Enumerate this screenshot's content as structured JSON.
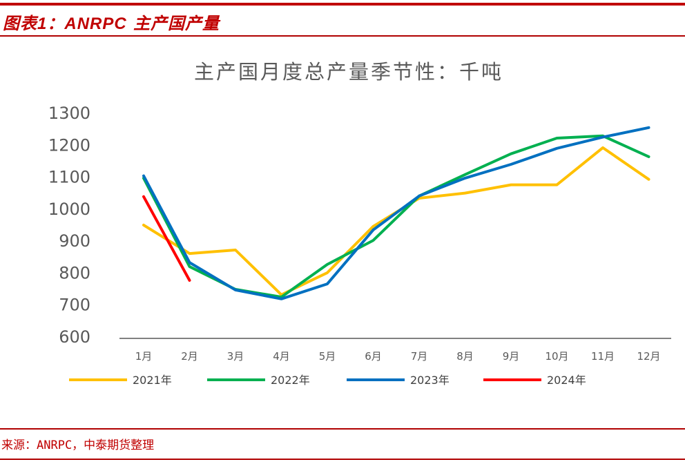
{
  "figure": {
    "title": "图表1：ANRPC 主产国产量",
    "title_prefix": "图表",
    "title_number": "1：",
    "title_en": "ANRPC",
    "title_suffix": "主产国产量"
  },
  "source": "来源：ANRPC，中泰期货整理",
  "colors": {
    "accent_red": "#c00000",
    "series_2021": "#ffc000",
    "series_2022": "#00b050",
    "series_2023": "#0070c0",
    "series_2024": "#ff0000"
  },
  "chart_data": {
    "type": "line",
    "title": "主产国月度总产量季节性：千吨",
    "xlabel": "",
    "ylabel": "",
    "ylim": [
      600,
      1300
    ],
    "yticks": [
      600,
      700,
      800,
      900,
      1000,
      1100,
      1200,
      1300
    ],
    "grid": false,
    "legend_position": "bottom",
    "categories": [
      "1月",
      "2月",
      "3月",
      "4月",
      "5月",
      "6月",
      "7月",
      "8月",
      "9月",
      "10月",
      "11月",
      "12月"
    ],
    "series": [
      {
        "name": "2021年",
        "color": "#ffc000",
        "values": [
          948,
          859,
          870,
          730,
          799,
          944,
          1032,
          1048,
          1074,
          1074,
          1190,
          1091
        ]
      },
      {
        "name": "2022年",
        "color": "#00b050",
        "values": [
          1095,
          818,
          747,
          723,
          825,
          900,
          1039,
          1106,
          1171,
          1220,
          1227,
          1162
        ]
      },
      {
        "name": "2023年",
        "color": "#0070c0",
        "values": [
          1102,
          831,
          745,
          717,
          764,
          933,
          1039,
          1095,
          1138,
          1188,
          1223,
          1253
        ]
      },
      {
        "name": "2024年",
        "color": "#ff0000",
        "values": [
          1037,
          775
        ]
      }
    ]
  }
}
